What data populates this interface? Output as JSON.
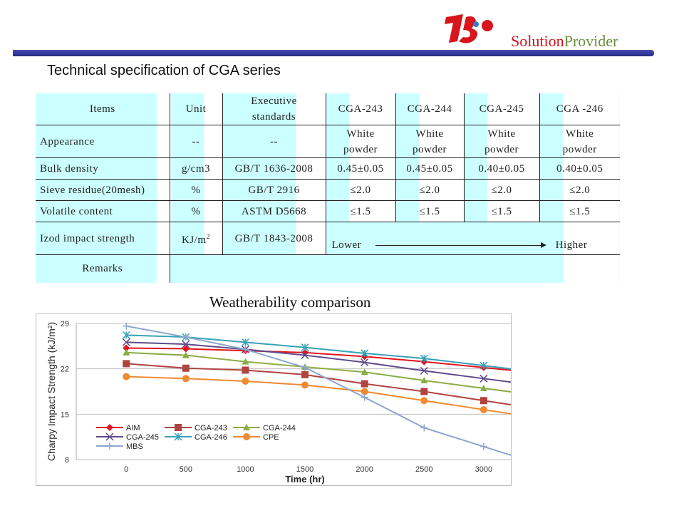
{
  "header": {
    "brand_part1": "Solution",
    "brand_part2": "Provider",
    "logo_text": "TJ",
    "title": "Technical specification of CGA series"
  },
  "table": {
    "headers": [
      "Items",
      "Unit",
      "Executive standards",
      "CGA-243",
      "CGA-244",
      "CGA-245",
      "CGA -246"
    ],
    "rows": [
      {
        "item": "Appearance",
        "unit": "--",
        "standard": "--",
        "values": [
          "White powder",
          "White powder",
          "White powder",
          "White powder"
        ]
      },
      {
        "item": "Bulk density",
        "unit": "g/cm3",
        "standard": "GB/T 1636-2008",
        "values": [
          "0.45±0.05",
          "0.45±0.05",
          "0.40±0.05",
          "0.40±0.05"
        ]
      },
      {
        "item": "Sieve residue(20mesh)",
        "unit": "%",
        "standard": "GB/T 2916",
        "values": [
          "≤2.0",
          "≤2.0",
          "≤2.0",
          "≤2.0"
        ]
      },
      {
        "item": "Volatile content",
        "unit": "%",
        "standard": "ASTM D5668",
        "values": [
          "≤1.5",
          "≤1.5",
          "≤1.5",
          "≤1.5"
        ]
      }
    ],
    "izod": {
      "item": "Izod impact strength",
      "unit": "KJ/m",
      "unit_sup": "2",
      "standard": "GB/T 1843-2008",
      "lower": "Lower",
      "higher": "Higher"
    },
    "remarks": "Remarks"
  },
  "chart_data": {
    "type": "line",
    "title": "Weatherability comparison",
    "xlabel": "Time (hr)",
    "ylabel": "Charpy Impact Strength (kJ/m²)",
    "x": [
      0,
      500,
      1000,
      1500,
      2000,
      2500,
      3000
    ],
    "xticks": [
      "0",
      "500",
      "1000",
      "1500",
      "2000",
      "2500",
      "3000"
    ],
    "yticks": [
      "29",
      "22",
      "15",
      "8"
    ],
    "ylim": [
      8,
      29
    ],
    "xlim": [
      -420,
      3240
    ],
    "legend": "bottom-left",
    "series": [
      {
        "name": "AIM",
        "color": "#e3141c",
        "marker": "diamond",
        "values": [
          25.2,
          25.1,
          24.8,
          24.5,
          23.9,
          23.1,
          22.2
        ]
      },
      {
        "name": "CGA-243",
        "color": "#b04440",
        "marker": "square",
        "values": [
          22.8,
          22.1,
          21.8,
          21.1,
          19.7,
          18.5,
          17.1
        ]
      },
      {
        "name": "CGA-244",
        "color": "#8bac45",
        "marker": "triangle",
        "values": [
          24.5,
          24.1,
          23.1,
          22.3,
          21.5,
          20.2,
          19.0
        ]
      },
      {
        "name": "CGA-245",
        "color": "#5e4a8a",
        "marker": "x",
        "values": [
          26.1,
          25.8,
          25.0,
          24.1,
          23.0,
          21.7,
          20.5
        ]
      },
      {
        "name": "CGA-246",
        "color": "#36a2b8",
        "marker": "star",
        "values": [
          27.2,
          26.9,
          26.1,
          25.3,
          24.4,
          23.6,
          22.5
        ]
      },
      {
        "name": "CPE",
        "color": "#f08a30",
        "marker": "circle",
        "values": [
          20.8,
          20.5,
          20.1,
          19.5,
          18.5,
          17.1,
          15.7
        ]
      },
      {
        "name": "MBS",
        "color": "#8ea6cf",
        "marker": "plus",
        "values": [
          28.6,
          26.9,
          25.0,
          22.2,
          17.6,
          12.9,
          10.0
        ]
      }
    ]
  }
}
